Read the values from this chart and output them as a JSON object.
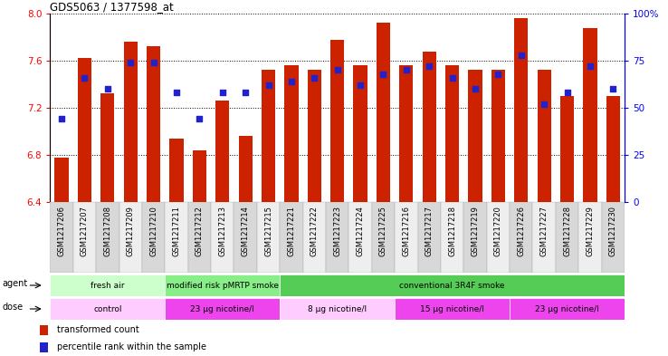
{
  "title": "GDS5063 / 1377598_at",
  "samples": [
    "GSM1217206",
    "GSM1217207",
    "GSM1217208",
    "GSM1217209",
    "GSM1217210",
    "GSM1217211",
    "GSM1217212",
    "GSM1217213",
    "GSM1217214",
    "GSM1217215",
    "GSM1217221",
    "GSM1217222",
    "GSM1217223",
    "GSM1217224",
    "GSM1217225",
    "GSM1217216",
    "GSM1217217",
    "GSM1217218",
    "GSM1217219",
    "GSM1217220",
    "GSM1217226",
    "GSM1217227",
    "GSM1217228",
    "GSM1217229",
    "GSM1217230"
  ],
  "bar_values": [
    6.78,
    7.62,
    7.32,
    7.76,
    7.72,
    6.94,
    6.84,
    7.26,
    6.96,
    7.52,
    7.56,
    7.52,
    7.78,
    7.56,
    7.92,
    7.56,
    7.68,
    7.56,
    7.52,
    7.52,
    7.96,
    7.52,
    7.3,
    7.88,
    7.3
  ],
  "percentile_values": [
    44,
    66,
    60,
    74,
    74,
    58,
    44,
    58,
    58,
    62,
    64,
    66,
    70,
    62,
    68,
    70,
    72,
    66,
    60,
    68,
    78,
    52,
    58,
    72,
    60
  ],
  "y_min": 6.4,
  "y_max": 8.0,
  "y_ticks": [
    6.4,
    6.8,
    7.2,
    7.6,
    8.0
  ],
  "right_y_ticks": [
    0,
    25,
    50,
    75,
    100
  ],
  "bar_color": "#CC2200",
  "dot_color": "#2222CC",
  "agent_groups": [
    {
      "label": "fresh air",
      "start": 0,
      "end": 5,
      "color": "#CCFFCC"
    },
    {
      "label": "modified risk pMRTP smoke",
      "start": 5,
      "end": 10,
      "color": "#88EE88"
    },
    {
      "label": "conventional 3R4F smoke",
      "start": 10,
      "end": 25,
      "color": "#55CC55"
    }
  ],
  "dose_groups": [
    {
      "label": "control",
      "start": 0,
      "end": 5,
      "color": "#FFCCFF"
    },
    {
      "label": "23 μg nicotine/l",
      "start": 5,
      "end": 10,
      "color": "#EE44EE"
    },
    {
      "label": "8 μg nicotine/l",
      "start": 10,
      "end": 15,
      "color": "#FFCCFF"
    },
    {
      "label": "15 μg nicotine/l",
      "start": 15,
      "end": 20,
      "color": "#EE44EE"
    },
    {
      "label": "23 μg nicotine/l",
      "start": 20,
      "end": 25,
      "color": "#EE44EE"
    }
  ],
  "legend_items": [
    {
      "label": "transformed count",
      "color": "#CC2200"
    },
    {
      "label": "percentile rank within the sample",
      "color": "#2222CC"
    }
  ]
}
